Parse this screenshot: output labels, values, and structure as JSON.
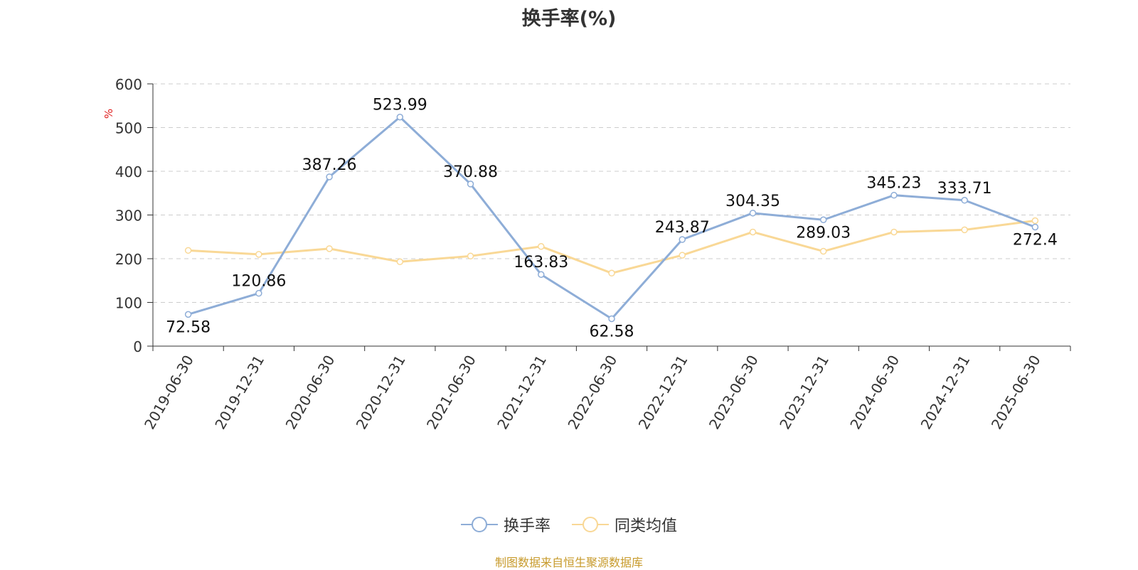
{
  "chart_data": {
    "type": "line",
    "title": "换手率(%)",
    "ylabel": "%",
    "ylim": [
      0,
      600
    ],
    "yticks": [
      "0",
      "100",
      "200",
      "300",
      "400",
      "500",
      "600"
    ],
    "categories": [
      "2019-06-30",
      "2019-12-31",
      "2020-06-30",
      "2020-12-31",
      "2021-06-30",
      "2021-12-31",
      "2022-06-30",
      "2022-12-31",
      "2023-06-30",
      "2023-12-31",
      "2024-06-30",
      "2024-12-31",
      "2025-06-30"
    ],
    "grid": true,
    "legend_position": "bottom",
    "series": [
      {
        "name": "换手率",
        "color": "#8eadd7",
        "show_labels": true,
        "values": [
          72.58,
          120.86,
          387.26,
          523.99,
          370.88,
          163.83,
          62.58,
          243.87,
          304.35,
          289.03,
          345.23,
          333.71,
          272.4
        ],
        "labels": [
          "72.58",
          "120.86",
          "387.26",
          "523.99",
          "370.88",
          "163.83",
          "62.58",
          "243.87",
          "304.35",
          "289.03",
          "345.23",
          "333.71",
          "272.4"
        ]
      },
      {
        "name": "同类均值",
        "color": "#f9d896",
        "show_labels": false,
        "values": [
          219,
          210,
          223,
          193,
          206,
          228,
          167,
          208,
          261,
          217,
          261,
          266,
          287
        ]
      }
    ]
  },
  "source": "制图数据来自恒生聚源数据库"
}
